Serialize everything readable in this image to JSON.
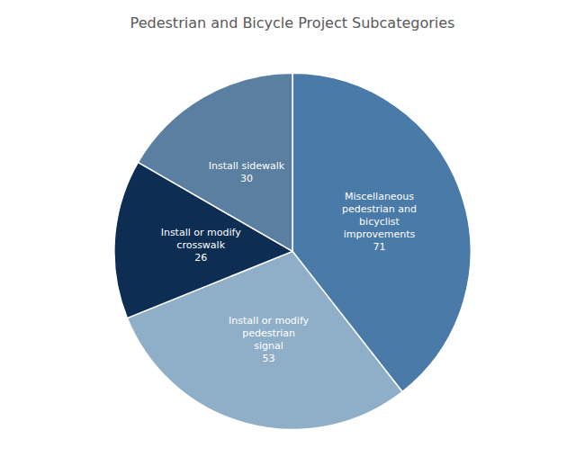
{
  "chart_data": {
    "type": "pie",
    "title": "Pedestrian and Bicycle Project Subcategories",
    "categories": [
      "Miscellaneous\npedestrian and\nbicyclist\nimprovements",
      "Install or modify\npedestrian\nsignal",
      "Install or modify\ncrosswalk",
      "Install sidewalk"
    ],
    "values": [
      71,
      53,
      26,
      30
    ],
    "colors": [
      "#4a7aa7",
      "#8fafc8",
      "#0d2d52",
      "#5a7fa0"
    ],
    "data_labels": true
  }
}
